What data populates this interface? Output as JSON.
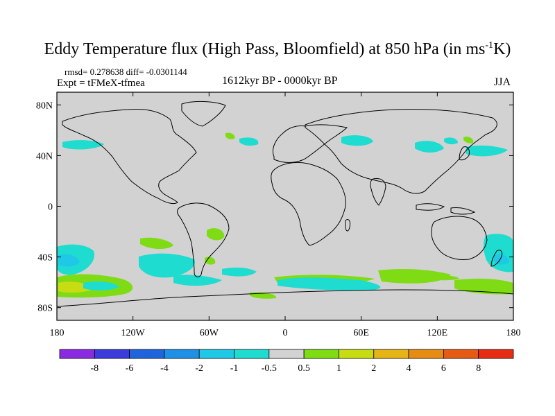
{
  "title": {
    "main": "Eddy Temperature flux (High Pass, Bloomfield) at 850 hPa (in ms",
    "superscript": "-1",
    "tail": "K)"
  },
  "stats": "rmsd= 0.278638 diff= -0.0301144",
  "experiment": "Expt = tFMeX-tfmea",
  "period": "1612kyr BP - 0000kyr BP",
  "season": "JJA",
  "map": {
    "background_color": "#d2d2d2",
    "lat_labels": [
      "80N",
      "40N",
      "0",
      "40S",
      "80S"
    ],
    "lat_values": [
      80,
      40,
      0,
      -40,
      -80
    ],
    "lon_labels": [
      "180",
      "120W",
      "60W",
      "0",
      "60E",
      "120E",
      "180"
    ],
    "lon_values": [
      -180,
      -120,
      -60,
      0,
      60,
      120,
      180
    ]
  },
  "colorbar": {
    "colors": [
      "#8a2be2",
      "#3c3cdc",
      "#1e64dc",
      "#1e90e6",
      "#1ec8e6",
      "#1edcd0",
      "#d2d2d2",
      "#7fdc14",
      "#c8dc14",
      "#e6b414",
      "#e68c14",
      "#e65a14",
      "#e62d14"
    ],
    "labels": [
      "-8",
      "-6",
      "-4",
      "-2",
      "-1",
      "-0.5",
      "0.5",
      "1",
      "2",
      "4",
      "6",
      "8"
    ]
  }
}
